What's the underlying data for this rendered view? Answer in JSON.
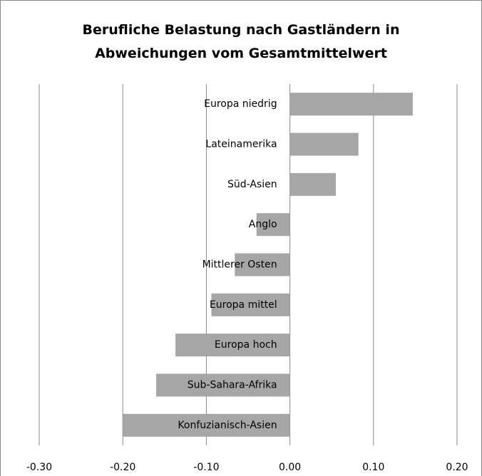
{
  "chart_data": {
    "type": "bar",
    "orientation": "horizontal",
    "title": "Berufliche Belastung nach Gastländern in Abweichungen vom Gesamtmittelwert",
    "categories": [
      "Europa niedrig",
      "Lateinamerika",
      "Süd-Asien",
      "Anglo",
      "Mittlerer Osten",
      "Europa mittel",
      "Europa hoch",
      "Sub-Sahara-Afrika",
      "Konfuzianisch-Asien"
    ],
    "values": [
      0.147,
      0.082,
      0.055,
      -0.04,
      -0.066,
      -0.094,
      -0.137,
      -0.16,
      -0.2
    ],
    "color": "#a6a6a6",
    "xlim": [
      -0.3,
      0.2
    ],
    "xticks": [
      {
        "value": -0.3,
        "label": "-0.30"
      },
      {
        "value": -0.2,
        "label": "-0.20"
      },
      {
        "value": -0.1,
        "label": "-0.10"
      },
      {
        "value": 0,
        "label": "0.00"
      },
      {
        "value": 0.1,
        "label": "0.10"
      },
      {
        "value": 0.2,
        "label": "0.20"
      }
    ],
    "grid": true
  }
}
